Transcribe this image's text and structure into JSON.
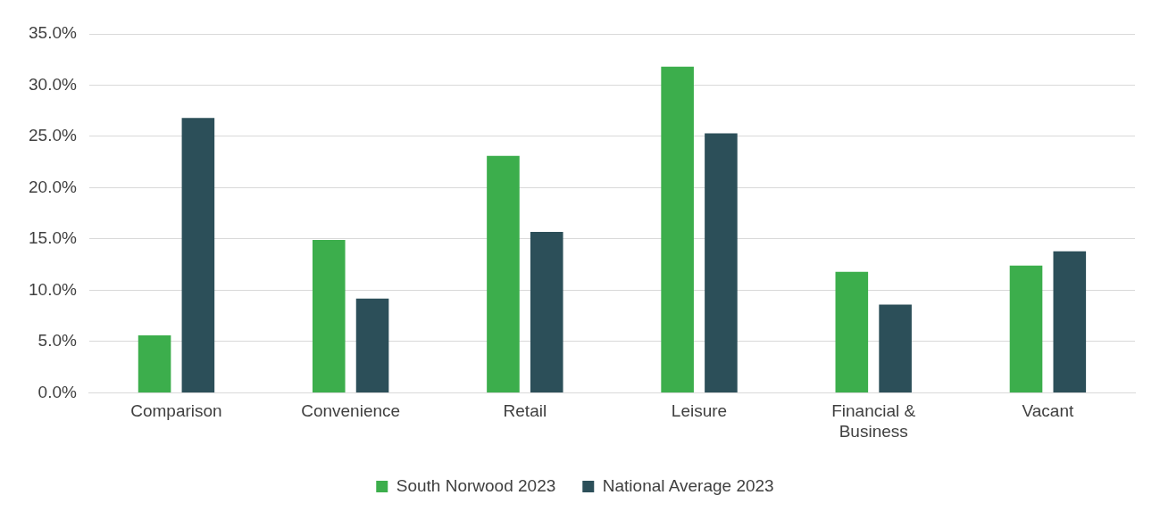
{
  "chart_data": {
    "type": "bar",
    "categories": [
      "Comparison",
      "Convenience",
      "Retail",
      "Leisure",
      "Financial & Business",
      "Vacant"
    ],
    "series": [
      {
        "name": "South Norwood 2023",
        "color": "#3cae4c",
        "values": [
          5.6,
          14.9,
          23.1,
          31.8,
          11.8,
          12.4
        ]
      },
      {
        "name": "National Average 2023",
        "color": "#2c4f59",
        "values": [
          26.8,
          9.2,
          15.7,
          25.3,
          8.6,
          13.8
        ]
      }
    ],
    "ylim": [
      0,
      35
    ],
    "yticks": [
      {
        "value": 0,
        "label": "0.0%"
      },
      {
        "value": 5,
        "label": "5.0%"
      },
      {
        "value": 10,
        "label": "10.0%"
      },
      {
        "value": 15,
        "label": "15.0%"
      },
      {
        "value": 20,
        "label": "20.0%"
      },
      {
        "value": 25,
        "label": "25.0%"
      },
      {
        "value": 30,
        "label": "30.0%"
      },
      {
        "value": 35,
        "label": "35.0%"
      }
    ],
    "grid": "y",
    "legend": "bottom"
  }
}
